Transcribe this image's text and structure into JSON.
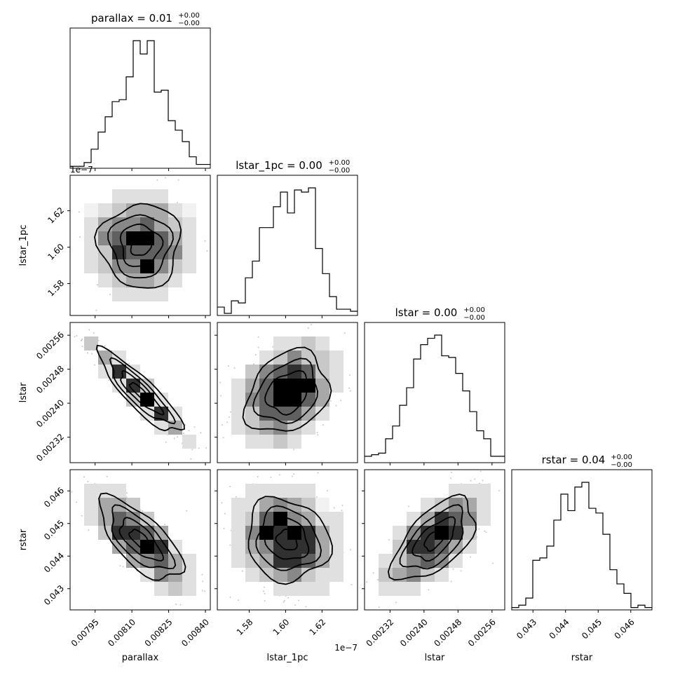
{
  "chart_data": {
    "type": "corner",
    "parameters": [
      "parallax",
      "lstar_1pc",
      "lstar",
      "rstar"
    ],
    "titles": [
      {
        "main": "parallax = 0.01",
        "sup": "+0.00",
        "sub": "−0.00"
      },
      {
        "main": "lstar_1pc = 0.00",
        "sup": "+0.00",
        "sub": "−0.00"
      },
      {
        "main": "lstar = 0.00",
        "sup": "+0.00",
        "sub": "−0.00"
      },
      {
        "main": "rstar = 0.04",
        "sup": "+0.00",
        "sub": "−0.00"
      }
    ],
    "axis_labels": [
      "parallax",
      "lstar_1pc",
      "lstar",
      "rstar"
    ],
    "offset_labels": {
      "lstar_1pc_y": "1e−7",
      "lstar_1pc_x": "1e−7"
    },
    "ranges": [
      [
        0.007848,
        0.00842
      ],
      [
        1.5625,
        1.6395
      ],
      [
        0.00226,
        0.00259
      ],
      [
        0.04235,
        0.04665
      ]
    ],
    "ticks": [
      {
        "values": [
          0.00795,
          0.0081,
          0.00825,
          0.0084
        ],
        "labels": [
          "0.00795",
          "0.00810",
          "0.00825",
          "0.00840"
        ]
      },
      {
        "values": [
          1.58,
          1.6,
          1.62
        ],
        "labels": [
          "1.58",
          "1.60",
          "1.62"
        ]
      },
      {
        "values": [
          0.00232,
          0.0024,
          0.00248,
          0.00256
        ],
        "labels": [
          "0.00232",
          "0.00240",
          "0.00248",
          "0.00256"
        ]
      },
      {
        "values": [
          0.043,
          0.044,
          0.045,
          0.046
        ],
        "labels": [
          "0.043",
          "0.044",
          "0.045",
          "0.046"
        ]
      }
    ],
    "histograms": [
      [
        1,
        1,
        3,
        10,
        19,
        27,
        35,
        36,
        48,
        67,
        60,
        67,
        40,
        41,
        25,
        20,
        14,
        6,
        2,
        2
      ],
      [
        4,
        1,
        7,
        6,
        18,
        26,
        42,
        42,
        52,
        59,
        49,
        60,
        59,
        61,
        32,
        20,
        9,
        3,
        3,
        2
      ],
      [
        4,
        5,
        6,
        15,
        23,
        36,
        47,
        65,
        74,
        78,
        80,
        67,
        66,
        56,
        45,
        32,
        20,
        15,
        4,
        4
      ],
      [
        1,
        2,
        5,
        21,
        22,
        27,
        38,
        49,
        42,
        52,
        54,
        43,
        41,
        32,
        17,
        11,
        7,
        1,
        2,
        1
      ]
    ],
    "correlations": {
      "lstar_1pc|parallax": 0.0,
      "lstar|parallax": -0.95,
      "lstar|lstar_1pc": 0.3,
      "rstar|parallax": -0.75,
      "rstar|lstar_1pc": -0.15,
      "rstar|lstar": 0.65
    },
    "grid": false,
    "legend": "none"
  }
}
